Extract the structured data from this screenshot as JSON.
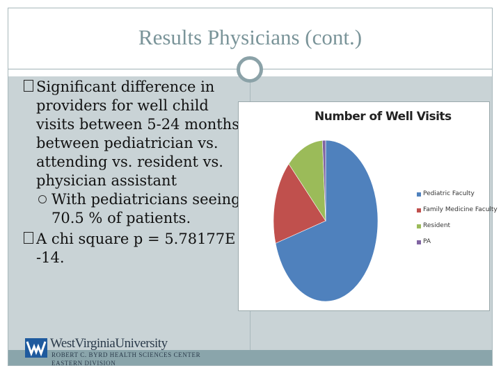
{
  "slide": {
    "title": "Results Physicians (cont.)",
    "bullets": [
      {
        "symbol": "",
        "text": "Significant difference in providers for well child visits between 5-24 months between pediatrician vs. attending vs. resident vs. physician assistant"
      },
      {
        "symbol": "",
        "text": "A chi square p = 5.78177E -14."
      }
    ],
    "sub_bullet": "With pediatricians seeing 70.5 % of patients."
  },
  "logo": {
    "name": "WestVirginiaUniversity",
    "line1": "ROBERT C. BYRD HEALTH SCIENCES CENTER",
    "line2": "EASTERN DIVISION"
  },
  "colors": {
    "title": "#7a9499",
    "content_band": "#c9d3d6",
    "footer_band": "#8aa5ab",
    "logo_blue": "#1e5a9e"
  },
  "chart_data": {
    "type": "pie",
    "title": "Number of Well Visits",
    "legend_placement": "right",
    "series": [
      {
        "name": "Pediatric Faculty",
        "value": 70.5,
        "color": "#4f81bd"
      },
      {
        "name": "Family Medicine Faculty",
        "value": 17.0,
        "color": "#c0504d"
      },
      {
        "name": "Resident",
        "value": 11.5,
        "color": "#9bbb59"
      },
      {
        "name": "PA",
        "value": 1.0,
        "color": "#8064a2"
      }
    ]
  }
}
